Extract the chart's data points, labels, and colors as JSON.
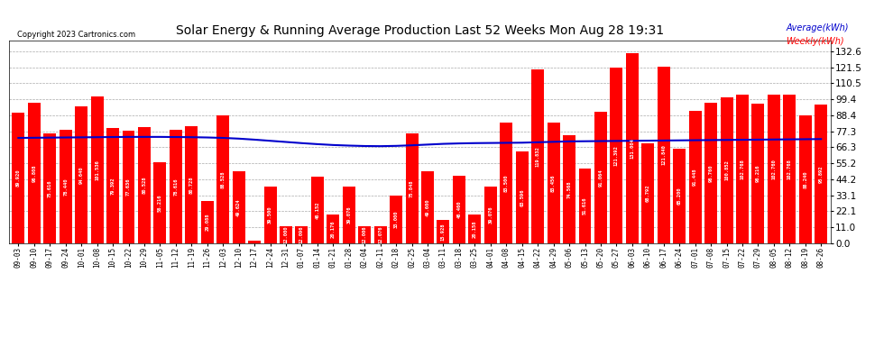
{
  "title": "Solar Energy & Running Average Production Last 52 Weeks Mon Aug 28 19:31",
  "copyright": "Copyright 2023 Cartronics.com",
  "legend_average": "Average(kWh)",
  "legend_weekly": "Weekly(kWh)",
  "categories": [
    "09-03",
    "09-10",
    "09-17",
    "09-24",
    "10-01",
    "10-08",
    "10-15",
    "10-22",
    "10-29",
    "11-05",
    "11-12",
    "11-19",
    "11-26",
    "12-03",
    "12-10",
    "12-17",
    "12-24",
    "12-31",
    "01-07",
    "01-14",
    "01-21",
    "01-28",
    "02-04",
    "02-11",
    "02-18",
    "02-25",
    "03-04",
    "03-11",
    "03-18",
    "03-25",
    "04-01",
    "04-08",
    "04-15",
    "04-22",
    "04-29",
    "05-06",
    "05-13",
    "05-20",
    "05-27",
    "06-03",
    "06-10",
    "06-17",
    "06-24",
    "07-01",
    "07-08",
    "07-15",
    "07-22",
    "07-29",
    "08-05",
    "08-12",
    "08-19",
    "08-26"
  ],
  "weekly_values": [
    89.92,
    96.808,
    75.616,
    78.44,
    94.64,
    101.536,
    79.392,
    77.636,
    80.528,
    56.216,
    78.616,
    80.728,
    29.088,
    88.528,
    49.624,
    1.928,
    39.5,
    12.0,
    12.096,
    46.152,
    20.176,
    39.076,
    12.006,
    12.076,
    33.0,
    75.848,
    49.6,
    15.928,
    46.46,
    20.158,
    39.076,
    83.5,
    63.596,
    119.832,
    83.456,
    74.568,
    51.616,
    91.064,
    121.392,
    131.004,
    68.792,
    121.84,
    65.2,
    91.448,
    96.76,
    100.852,
    102.768,
    96.216,
    102.76,
    102.768,
    88.24,
    95.892
  ],
  "average_values": [
    72.8,
    72.9,
    73.0,
    73.1,
    73.2,
    73.3,
    73.4,
    73.5,
    73.5,
    73.5,
    73.4,
    73.3,
    73.1,
    72.8,
    72.3,
    71.6,
    70.8,
    70.0,
    69.2,
    68.5,
    67.9,
    67.5,
    67.2,
    67.1,
    67.3,
    67.7,
    68.2,
    68.7,
    69.0,
    69.2,
    69.3,
    69.4,
    69.5,
    69.8,
    70.1,
    70.4,
    70.5,
    70.6,
    70.7,
    70.8,
    70.9,
    71.0,
    71.1,
    71.2,
    71.3,
    71.4,
    71.5,
    71.6,
    71.7,
    71.8,
    71.9,
    72.0
  ],
  "bar_color": "#FF0000",
  "line_color": "#0000CC",
  "background_color": "#FFFFFF",
  "grid_color": "#AAAAAA",
  "title_color": "#000000",
  "copyright_color": "#000000",
  "y_ticks": [
    0.0,
    11.0,
    22.1,
    33.1,
    44.2,
    55.2,
    66.3,
    77.3,
    88.4,
    99.4,
    110.5,
    121.5,
    132.6
  ],
  "ylim": [
    0.0,
    140.0
  ]
}
